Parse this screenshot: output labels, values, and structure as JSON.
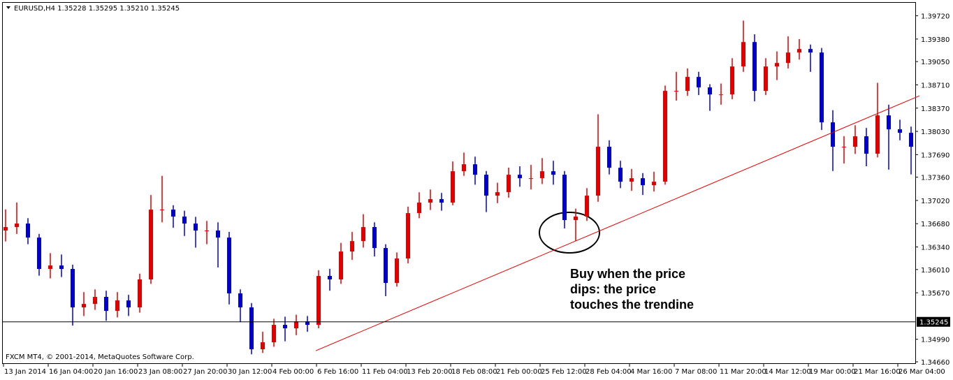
{
  "chart_data": {
    "type": "candlestick",
    "title": "EURUSD,H4  1.35228 1.35295 1.35210 1.35245",
    "footer": "FXCM MT4, © 2001-2014, MetaQuotes Software Corp.",
    "annotation": [
      "Buy when the price",
      "dips: the price",
      "touches the trendine"
    ],
    "up_color": "#e00000",
    "down_color": "#0000cc",
    "categories": [
      "13 Jan 2014",
      null,
      null,
      null,
      "16 Jan 04:00",
      null,
      null,
      null,
      "20 Jan 16:00",
      null,
      null,
      null,
      "23 Jan 08:00",
      null,
      null,
      null,
      "27 Jan 20:00",
      null,
      null,
      null,
      "30 Jan 12:00",
      null,
      null,
      null,
      "4 Feb 00:00",
      null,
      null,
      null,
      "6 Feb 16:00",
      null,
      null,
      null,
      "11 Feb 04:00",
      null,
      null,
      null,
      "13 Feb 20:00",
      null,
      null,
      null,
      "18 Feb 08:00",
      null,
      null,
      null,
      "21 Feb 00:00",
      null,
      null,
      null,
      "25 Feb 12:00",
      null,
      null,
      null,
      "28 Feb 04:00",
      null,
      null,
      null,
      "4 Mar 16:00",
      null,
      null,
      null,
      "7 Mar 08:00",
      null,
      null,
      null,
      "11 Mar 20:00",
      null,
      null,
      null,
      "14 Mar 12:00",
      null,
      null,
      null,
      "19 Mar 00:00",
      null,
      null,
      null,
      "21 Mar 16:00",
      null,
      null,
      null,
      "26 Mar 04:00",
      null
    ],
    "open": [
      1.3658,
      1.36631,
      1.36682,
      1.36477,
      1.36018,
      1.36069,
      1.36018,
      1.35456,
      1.35507,
      1.3561,
      1.35405,
      1.35558,
      1.35456,
      1.35865,
      1.36886,
      1.36886,
      1.36784,
      1.36682,
      1.3658,
      1.3658,
      1.36477,
      1.35661,
      1.35456,
      1.34844,
      1.34946,
      1.35201,
      1.3515,
      1.35252,
      1.35201,
      1.35916,
      1.35865,
      1.36273,
      1.36426,
      1.36631,
      1.36324,
      1.35814,
      1.36171,
      1.36835,
      1.36988,
      1.37039,
      1.36988,
      1.37447,
      1.37549,
      1.37396,
      1.3709,
      1.37141,
      1.37396,
      1.37345,
      1.37345,
      1.37447,
      1.37396,
      1.36733,
      1.36784,
      1.3709,
      1.37805,
      1.37498,
      1.37294,
      1.37345,
      1.37243,
      1.37294,
      1.38622,
      1.38622,
      1.38826,
      1.38673,
      1.3857,
      1.3857,
      1.38979,
      1.39336,
      1.38622,
      1.38979,
      1.3903,
      1.39183,
      1.39234,
      1.39183,
      1.38162,
      1.37805,
      1.37805,
      1.37958,
      1.37703,
      1.38264,
      1.3806,
      1.38009
    ],
    "high": [
      1.3689,
      1.3699,
      1.3676,
      1.3653,
      1.3625,
      1.3623,
      1.3608,
      1.3568,
      1.3572,
      1.357,
      1.3568,
      1.3564,
      1.3595,
      1.371,
      1.3738,
      1.3695,
      1.3687,
      1.3678,
      1.3672,
      1.367,
      1.3656,
      1.3572,
      1.3552,
      1.351,
      1.3529,
      1.3532,
      1.3535,
      1.3533,
      1.36,
      1.3602,
      1.364,
      1.3656,
      1.3682,
      1.367,
      1.3638,
      1.3626,
      1.3693,
      1.3714,
      1.3718,
      1.3713,
      1.3759,
      1.3772,
      1.3766,
      1.3745,
      1.3728,
      1.375,
      1.3752,
      1.3754,
      1.3764,
      1.376,
      1.3745,
      1.369,
      1.372,
      1.3828,
      1.379,
      1.376,
      1.3748,
      1.3742,
      1.3744,
      1.387,
      1.389,
      1.3895,
      1.389,
      1.3872,
      1.3873,
      1.391,
      1.3965,
      1.3945,
      1.391,
      1.392,
      1.3942,
      1.3938,
      1.393,
      1.3925,
      1.3834,
      1.3796,
      1.3812,
      1.3808,
      1.3874,
      1.3842,
      1.382,
      1.381
    ],
    "low": [
      1.3642,
      1.3653,
      1.3638,
      1.3592,
      1.3588,
      1.359,
      1.3519,
      1.3533,
      1.3542,
      1.3526,
      1.3531,
      1.3533,
      1.3538,
      1.358,
      1.367,
      1.3662,
      1.365,
      1.3633,
      1.3638,
      1.3604,
      1.355,
      1.3524,
      1.3477,
      1.3479,
      1.3488,
      1.3496,
      1.3505,
      1.351,
      1.3515,
      1.357,
      1.358,
      1.3615,
      1.3633,
      1.362,
      1.3562,
      1.3576,
      1.361,
      1.3676,
      1.3688,
      1.3687,
      1.3695,
      1.3738,
      1.3725,
      1.3685,
      1.3698,
      1.3706,
      1.3722,
      1.3718,
      1.3726,
      1.3725,
      1.3661,
      1.3643,
      1.3672,
      1.37,
      1.374,
      1.372,
      1.3716,
      1.371,
      1.3715,
      1.3725,
      1.3848,
      1.3855,
      1.3856,
      1.3833,
      1.3842,
      1.385,
      1.389,
      1.3847,
      1.3856,
      1.3878,
      1.3895,
      1.3908,
      1.389,
      1.3805,
      1.3745,
      1.3756,
      1.377,
      1.3752,
      1.3765,
      1.3747,
      1.379,
      1.374
    ],
    "close": [
      1.36631,
      1.36682,
      1.36477,
      1.36018,
      1.36069,
      1.36018,
      1.35456,
      1.35507,
      1.3561,
      1.35405,
      1.35558,
      1.35456,
      1.35865,
      1.36886,
      1.36886,
      1.36784,
      1.36682,
      1.3658,
      1.3658,
      1.36477,
      1.35661,
      1.35456,
      1.34844,
      1.34946,
      1.35201,
      1.3515,
      1.35252,
      1.35201,
      1.35916,
      1.35865,
      1.36273,
      1.36426,
      1.36631,
      1.36324,
      1.35814,
      1.36171,
      1.36835,
      1.36988,
      1.37039,
      1.36988,
      1.37447,
      1.37549,
      1.37396,
      1.3709,
      1.37141,
      1.37396,
      1.37345,
      1.37345,
      1.37447,
      1.37396,
      1.36733,
      1.36784,
      1.3709,
      1.37805,
      1.37498,
      1.37294,
      1.37345,
      1.37243,
      1.37294,
      1.38622,
      1.38622,
      1.38826,
      1.38673,
      1.3857,
      1.3857,
      1.38979,
      1.39336,
      1.38622,
      1.38979,
      1.3903,
      1.39183,
      1.39234,
      1.39183,
      1.38162,
      1.37805,
      1.37805,
      1.37958,
      1.37703,
      1.38264,
      1.3806,
      1.38009,
      1.37805
    ],
    "trendline": {
      "color": "#e00000",
      "values": [
        1.34823,
        1.3855
      ]
    },
    "current_price": {
      "value": 1.35245,
      "label": "1.35245"
    },
    "ylim": [
      1.3466,
      1.3991
    ],
    "yticks": [
      {
        "value": 1.3466,
        "label": "1.34660"
      },
      {
        "value": 1.3499,
        "label": "1.34990"
      },
      {
        "value": 1.3567,
        "label": "1.35670"
      },
      {
        "value": 1.3601,
        "label": "1.36010"
      },
      {
        "value": 1.3634,
        "label": "1.36340"
      },
      {
        "value": 1.3668,
        "label": "1.36680"
      },
      {
        "value": 1.3702,
        "label": "1.37020"
      },
      {
        "value": 1.3736,
        "label": "1.37360"
      },
      {
        "value": 1.3769,
        "label": "1.37690"
      },
      {
        "value": 1.3803,
        "label": "1.38030"
      },
      {
        "value": 1.3837,
        "label": "1.38370"
      },
      {
        "value": 1.3871,
        "label": "1.38710"
      },
      {
        "value": 1.3905,
        "label": "1.39050"
      },
      {
        "value": 1.3938,
        "label": "1.39380"
      },
      {
        "value": 1.3972,
        "label": "1.39720"
      }
    ]
  }
}
